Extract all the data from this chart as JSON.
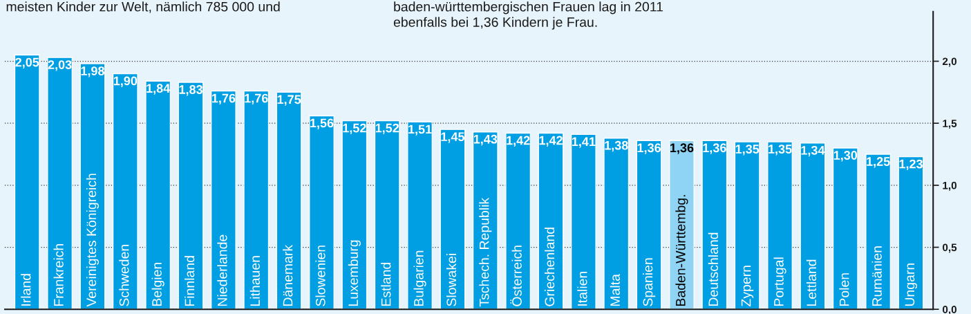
{
  "chart_data": {
    "type": "bar",
    "annotations": [
      "meisten Kinder zur Welt, nämlich 785 000 und",
      "baden-württembergischen Frauen lag in 2011\nebenfalls bei 1,36 Kindern je Frau."
    ],
    "categories": [
      "Irland",
      "Frankreich",
      "Vereinigtes Königreich",
      "Schweden",
      "Belgien",
      "Finnland",
      "Niederlande",
      "Lithauen",
      "Dänemark",
      "Slowenien",
      "Luxemburg",
      "Estland",
      "Bulgarien",
      "Slowakei",
      "Tschech. Republik",
      "Österreich",
      "Griechenland",
      "Italien",
      "Malta",
      "Spanien",
      "Baden-Württembg.",
      "Deutschland",
      "Zypern",
      "Portugal",
      "Lettland",
      "Polen",
      "Rumänien",
      "Ungarn"
    ],
    "values": [
      2.05,
      2.03,
      1.98,
      1.9,
      1.84,
      1.83,
      1.76,
      1.76,
      1.75,
      1.56,
      1.52,
      1.52,
      1.51,
      1.45,
      1.43,
      1.42,
      1.42,
      1.41,
      1.38,
      1.36,
      1.36,
      1.36,
      1.35,
      1.35,
      1.34,
      1.3,
      1.25,
      1.23
    ],
    "value_labels": [
      "2,05",
      "2,03",
      "1,98",
      "1,90",
      "1,84",
      "1,83",
      "1,76",
      "1,76",
      "1,75",
      "1,56",
      "1,52",
      "1,52",
      "1,51",
      "1,45",
      "1,43",
      "1,42",
      "1,42",
      "1,41",
      "1,38",
      "1,36",
      "1,36",
      "1,36",
      "1,35",
      "1,35",
      "1,34",
      "1,30",
      "1,25",
      "1,23"
    ],
    "colors": [
      "#009fe3",
      "#009fe3",
      "#009fe3",
      "#009fe3",
      "#009fe3",
      "#009fe3",
      "#009fe3",
      "#009fe3",
      "#009fe3",
      "#009fe3",
      "#009fe3",
      "#009fe3",
      "#009fe3",
      "#009fe3",
      "#009fe3",
      "#009fe3",
      "#009fe3",
      "#009fe3",
      "#009fe3",
      "#009fe3",
      "#8fd4f5",
      "#009fe3",
      "#009fe3",
      "#009fe3",
      "#009fe3",
      "#009fe3",
      "#009fe3",
      "#009fe3"
    ],
    "ylim": [
      0,
      2.4
    ],
    "yticks": [
      {
        "value": 0,
        "label": "0,0"
      },
      {
        "value": 0.5,
        "label": "0,5"
      },
      {
        "value": 1.0,
        "label": "1,0"
      },
      {
        "value": 1.5,
        "label": "1,5"
      },
      {
        "value": 2.0,
        "label": "2,0"
      }
    ],
    "grid": "y",
    "legend": false
  }
}
